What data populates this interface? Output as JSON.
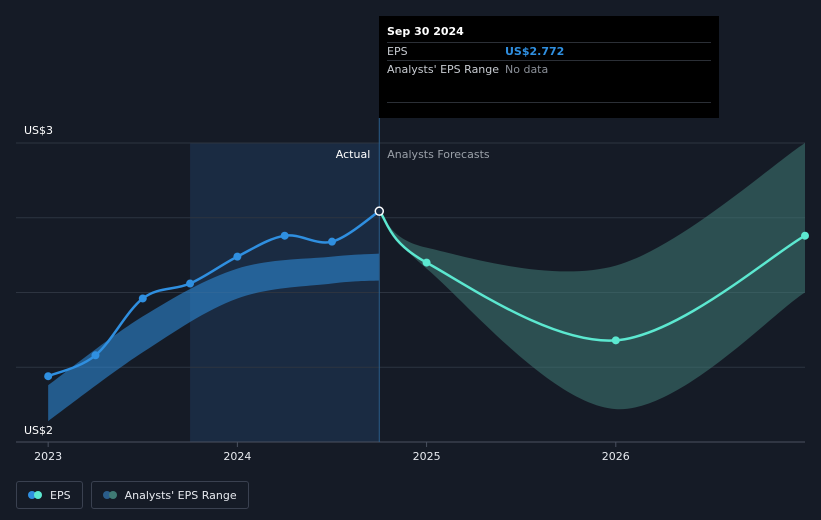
{
  "chart_data": {
    "type": "line",
    "y_axis": {
      "min_label": "US$2",
      "max_label": "US$3",
      "ylim": [
        2.0,
        3.0
      ],
      "grid": true
    },
    "x_axis": {
      "ticks": [
        "2023",
        "2024",
        "2025",
        "2026"
      ],
      "tick_years": [
        2023.0,
        2024.0,
        2025.0,
        2026.0
      ],
      "xlim": [
        2022.83,
        2027.0
      ]
    },
    "regions": {
      "actual_label": "Actual",
      "forecast_label": "Analysts Forecasts",
      "split_x": 2024.75,
      "shade_start_x": 2023.75
    },
    "series": [
      {
        "name": "EPS",
        "color": "#2f8fe0",
        "points": [
          {
            "x": 2023.0,
            "y": 2.22
          },
          {
            "x": 2023.25,
            "y": 2.29
          },
          {
            "x": 2023.5,
            "y": 2.48
          },
          {
            "x": 2023.75,
            "y": 2.53
          },
          {
            "x": 2024.0,
            "y": 2.62
          },
          {
            "x": 2024.25,
            "y": 2.69
          },
          {
            "x": 2024.5,
            "y": 2.67
          },
          {
            "x": 2024.75,
            "y": 2.772
          }
        ]
      },
      {
        "name": "EPS",
        "color": "#5ce8d0",
        "points": [
          {
            "x": 2024.75,
            "y": 2.772
          },
          {
            "x": 2025.0,
            "y": 2.6
          },
          {
            "x": 2026.0,
            "y": 2.34
          },
          {
            "x": 2027.0,
            "y": 2.69
          }
        ]
      }
    ],
    "ranges": [
      {
        "name": "Analysts' EPS Range",
        "color": "#2f8fe0",
        "points": [
          {
            "x": 2023.0,
            "low": 2.07,
            "high": 2.19
          },
          {
            "x": 2023.5,
            "low": 2.3,
            "high": 2.42
          },
          {
            "x": 2024.0,
            "low": 2.48,
            "high": 2.58
          },
          {
            "x": 2024.5,
            "low": 2.53,
            "high": 2.62
          },
          {
            "x": 2024.75,
            "low": 2.54,
            "high": 2.63
          }
        ]
      },
      {
        "name": "Analysts' EPS Range",
        "color": "#3f7a74",
        "points": [
          {
            "x": 2024.75,
            "low": 2.772,
            "high": 2.772
          },
          {
            "x": 2025.0,
            "low": 2.58,
            "high": 2.65
          },
          {
            "x": 2026.0,
            "low": 2.11,
            "high": 2.59
          },
          {
            "x": 2027.0,
            "low": 2.5,
            "high": 3.0
          }
        ]
      }
    ]
  },
  "tooltip": {
    "date": "Sep 30 2024",
    "rows": [
      {
        "label": "EPS",
        "value": "US$2.772"
      },
      {
        "label": "Analysts' EPS Range",
        "value": "No data"
      }
    ]
  },
  "legend": [
    {
      "label": "EPS",
      "colors": [
        "#5ce8d0",
        "#2f8fe0"
      ]
    },
    {
      "label": "Analysts' EPS Range",
      "colors": [
        "#3f7a74",
        "#2a5d8a"
      ]
    }
  ]
}
